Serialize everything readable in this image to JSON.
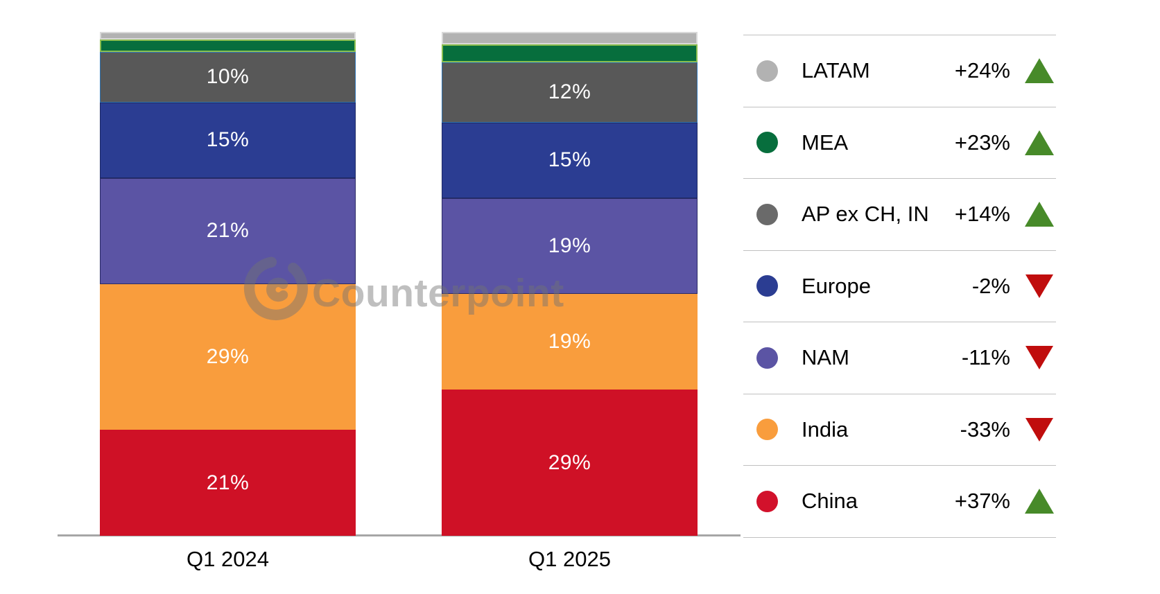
{
  "watermark": {
    "text": "Counterpoint",
    "logo_icon": "counterpoint-spiral-logo"
  },
  "colors": {
    "up_triangle": "#478a29",
    "down_triangle": "#c00d0d",
    "axis_line": "#a6a6a6",
    "separator": "#c0c0c0",
    "bar_label_text": "#ffffff",
    "legend_text": "#000000",
    "watermark_gray": "#737373"
  },
  "chart_data": {
    "type": "bar",
    "stacked": true,
    "orientation": "vertical",
    "title": "",
    "categories": [
      "Q1 2024",
      "Q1 2025"
    ],
    "value_unit": "percent share of shipments",
    "ylim": [
      0,
      100
    ],
    "gridlines": false,
    "legend_position": "right",
    "series": [
      {
        "name": "China",
        "color": "#cf1126",
        "border": "",
        "values": [
          21,
          29
        ],
        "labels": [
          "21%",
          "29%"
        ]
      },
      {
        "name": "India",
        "color": "#f99d3d",
        "border": "",
        "values": [
          29,
          19
        ],
        "labels": [
          "29%",
          "19%"
        ]
      },
      {
        "name": "NAM",
        "color": "#5b54a4",
        "border": "1px solid #2b2b66",
        "values": [
          21,
          19
        ],
        "labels": [
          "21%",
          "19%"
        ]
      },
      {
        "name": "Europe",
        "color": "#2b3d92",
        "border": "1px solid #1e2a66",
        "values": [
          15,
          15
        ],
        "labels": [
          "15%",
          "15%"
        ]
      },
      {
        "name": "AP ex CH, IN",
        "color": "#585858",
        "border": "1px solid #2f74b5",
        "values": [
          10,
          12
        ],
        "labels": [
          "10%",
          "12%"
        ]
      },
      {
        "name": "MEA",
        "color": "#076e3d",
        "border": "2px solid #8cbf4f",
        "values": [
          2.5,
          3.5
        ],
        "labels": [
          "",
          ""
        ]
      },
      {
        "name": "LATAM",
        "color": "#b2b2b2",
        "border": "2px solid #d9d9d9",
        "values": [
          1.5,
          2.5
        ],
        "labels": [
          "",
          ""
        ]
      }
    ]
  },
  "legend": {
    "rows": [
      {
        "label": "LATAM",
        "color": "#b2b2b2",
        "change": "+24%",
        "direction": "up"
      },
      {
        "label": "MEA",
        "color": "#076e3d",
        "change": "+23%",
        "direction": "up"
      },
      {
        "label": "AP ex CH, IN",
        "color": "#6a6a6a",
        "change": "+14%",
        "direction": "up"
      },
      {
        "label": "Europe",
        "color": "#2b3d92",
        "change": "-2%",
        "direction": "down"
      },
      {
        "label": "NAM",
        "color": "#5b54a4",
        "change": "-11%",
        "direction": "down"
      },
      {
        "label": "India",
        "color": "#f99d3d",
        "change": "-33%",
        "direction": "down"
      },
      {
        "label": "China",
        "color": "#d2112b",
        "change": "+37%",
        "direction": "up"
      }
    ]
  }
}
